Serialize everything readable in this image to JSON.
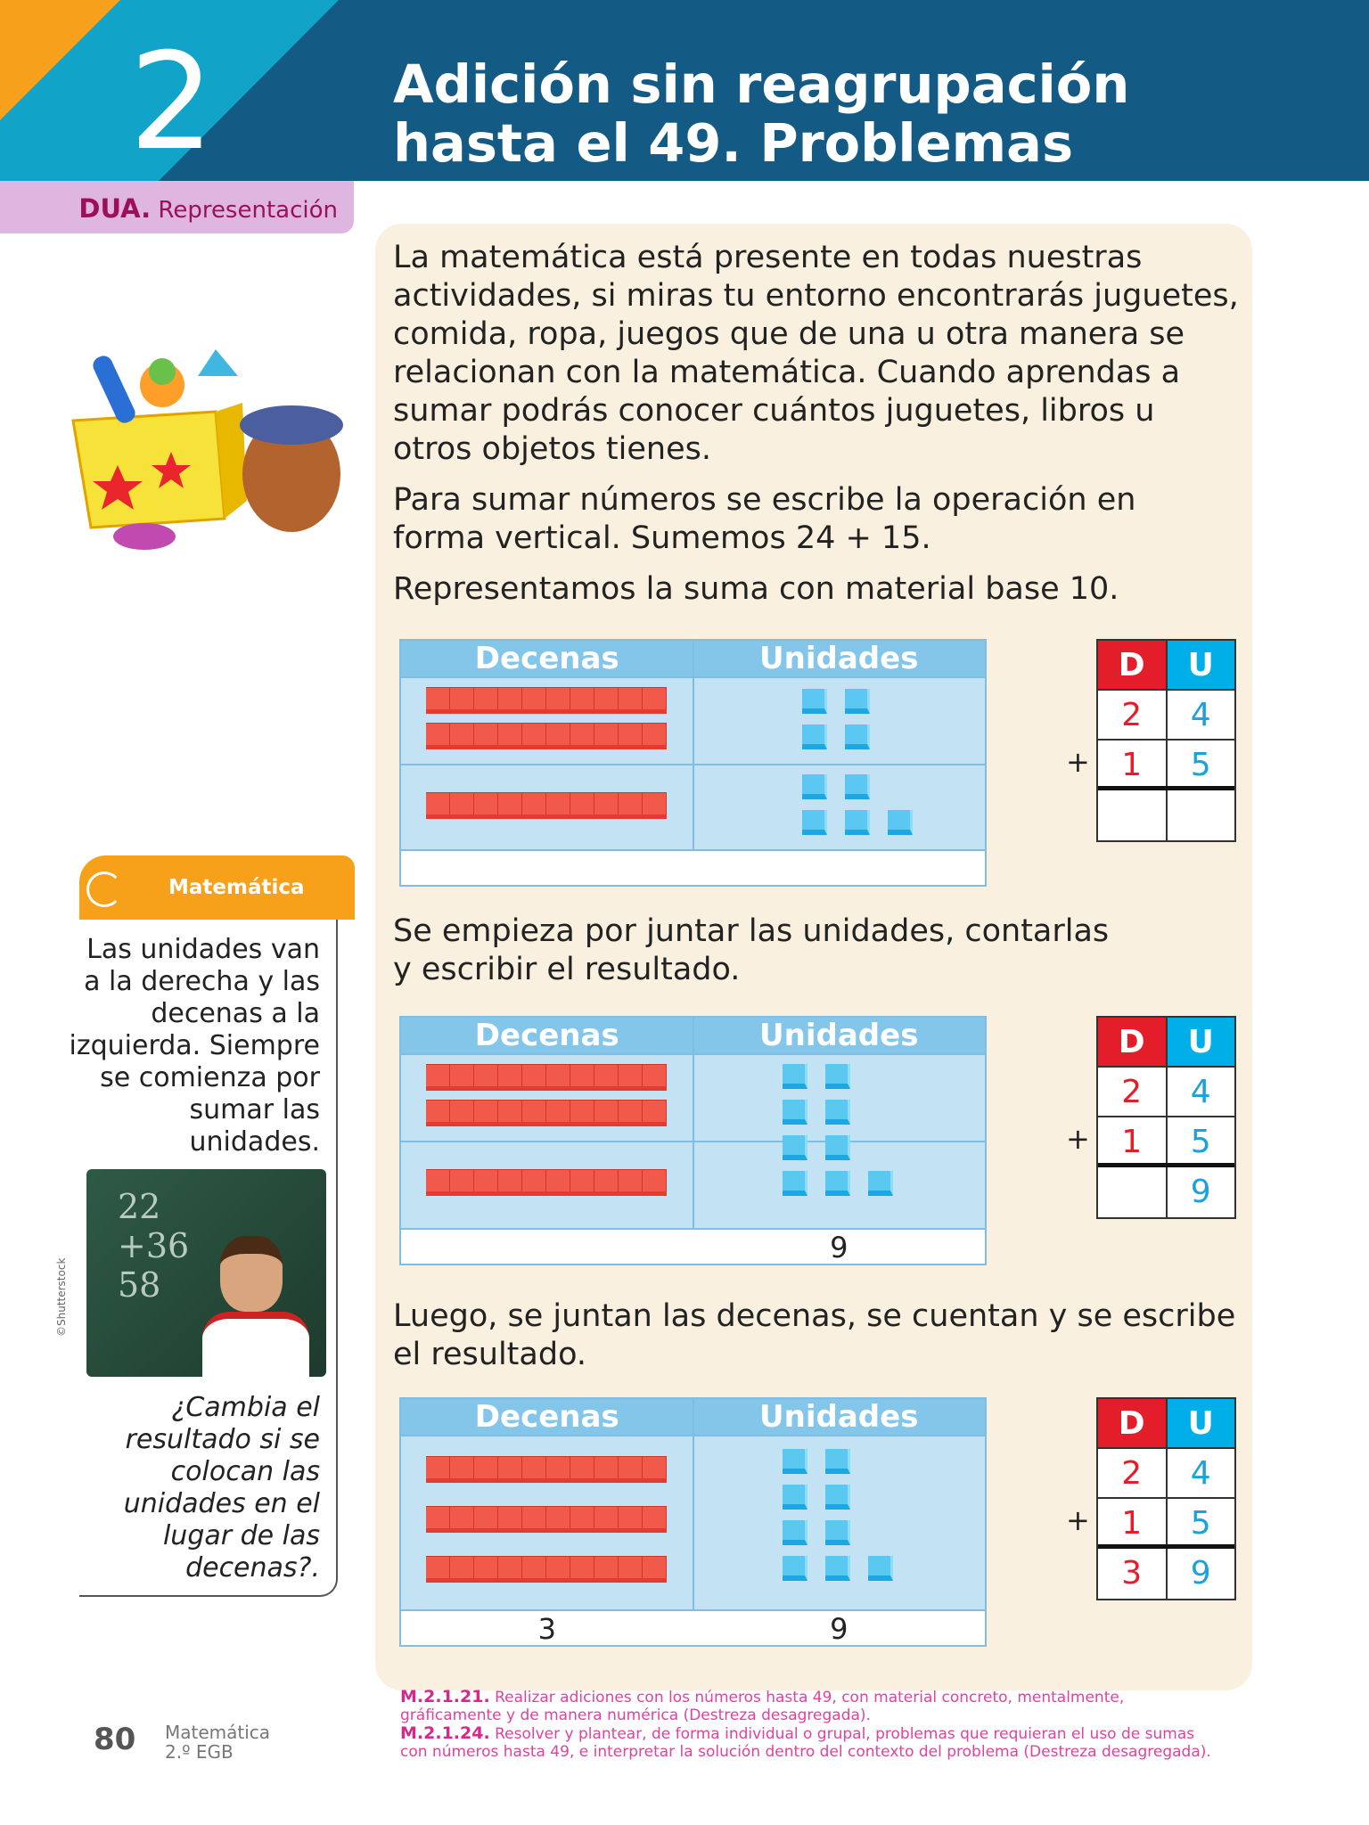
{
  "header": {
    "chapter_number": "2",
    "title_line1": "Adición sin reagrupación",
    "title_line2": "hasta el 49. Problemas"
  },
  "dua": {
    "label": "DUA.",
    "text": "Representación"
  },
  "intro": {
    "p1": [
      "La matemática está presente en todas nuestras",
      "actividades, si miras tu entorno encontrarás juguetes,",
      "comida, ropa, juegos que de una u otra manera se",
      "relacionan con la matemática. Cuando aprendas a",
      "sumar podrás conocer cuántos juguetes, libros u",
      "otros objetos tienes."
    ],
    "p2": [
      "Para sumar números se escribe la operación en",
      "forma vertical. Sumemos 24 + 15."
    ],
    "p3": "Representamos la suma con material base 10."
  },
  "step2": [
    "Se empieza por juntar las unidades, contarlas",
    "y escribir el resultado."
  ],
  "step3": [
    "Luego, se juntan las decenas, se cuentan y se escribe",
    "el resultado."
  ],
  "table_headers": {
    "tens": "Decenas",
    "units": "Unidades"
  },
  "tables": [
    {
      "rows": [
        {
          "rods": 2,
          "cubes": 4
        },
        {
          "rods": 1,
          "cubes": 5
        }
      ],
      "result_tens": "",
      "result_units": ""
    },
    {
      "rows": [
        {
          "rods": 2
        },
        {
          "rods": 1
        }
      ],
      "cubes": 9,
      "result_tens": "",
      "result_units": "9"
    },
    {
      "rods": 3,
      "cubes": 9,
      "result_tens": "3",
      "result_units": "9"
    }
  ],
  "du": {
    "d": "D",
    "u": "U",
    "plus": "+",
    "a": [
      "2",
      "4"
    ],
    "b": [
      "1",
      "5"
    ],
    "results": [
      [
        "",
        ""
      ],
      [
        "",
        "9"
      ],
      [
        "3",
        "9"
      ]
    ]
  },
  "sidebar": {
    "tab": "Matemática",
    "text": [
      "Las unidades van",
      "a la derecha y las",
      "decenas a la",
      "izquierda. Siempre",
      "se comienza por",
      "sumar las",
      "unidades."
    ],
    "chalk": [
      "22",
      "+36",
      "58"
    ],
    "credit": "©Shutterstock",
    "question": [
      "¿Cambia el",
      "resultado si se",
      "colocan las",
      "unidades en el",
      "lugar de las",
      "decenas?."
    ]
  },
  "footer": {
    "page": "80",
    "subject": "Matemática",
    "grade": "2.º EGB",
    "skills": [
      {
        "code": "M.2.1.21.",
        "text": "Realizar adiciones con los números hasta 49, con material concreto, mentalmente, gráficamente y de manera numérica (Destreza desagregada)."
      },
      {
        "code": "M.2.1.24.",
        "text": "Resolver y plantear, de forma individual o grupal, problemas que requieran el uso de sumas con números hasta 49, e interpretar la solución dentro del contexto del problema (Destreza desagregada)."
      }
    ]
  }
}
